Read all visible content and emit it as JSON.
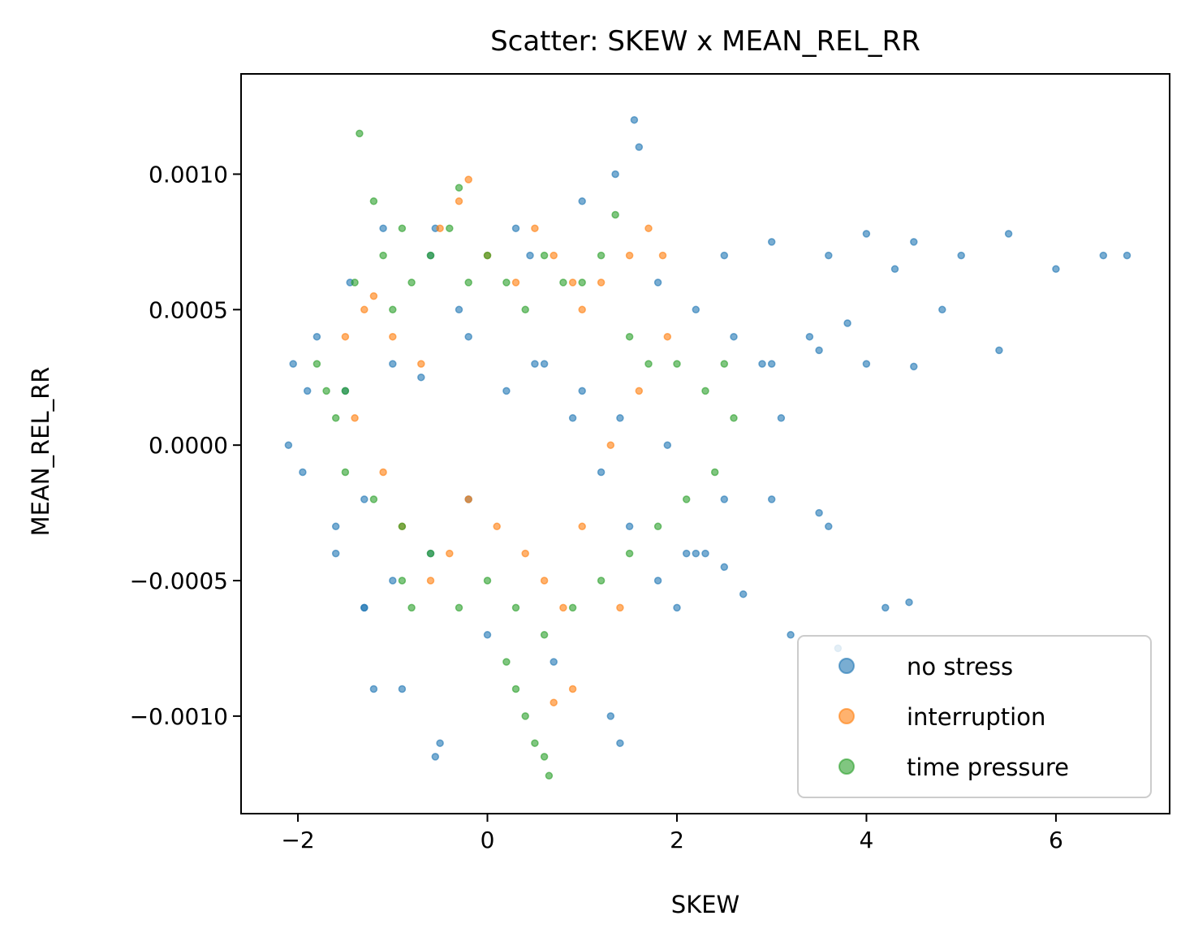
{
  "chart_data": {
    "type": "scatter",
    "title": "Scatter: SKEW x MEAN_REL_RR",
    "xlabel": "SKEW",
    "ylabel": "MEAN_REL_RR",
    "xlim": [
      -2.6,
      7.2
    ],
    "ylim": [
      -0.00136,
      0.00137
    ],
    "x_ticks": [
      -2,
      0,
      2,
      4,
      6
    ],
    "x_tick_labels": [
      "−2",
      "0",
      "2",
      "4",
      "6"
    ],
    "y_ticks": [
      0.001,
      0.0005,
      0.0,
      -0.0005,
      -0.001
    ],
    "y_tick_labels": [
      "0.0010",
      "0.0005",
      "0.0000",
      "−0.0005",
      "−0.0010"
    ],
    "grid": false,
    "legend_position": "lower right",
    "marker_alpha": 0.6,
    "series": [
      {
        "name": "no stress",
        "color": "#1f77b4",
        "x": [
          -2.1,
          -2.05,
          -1.95,
          -1.8,
          -1.6,
          -1.45,
          -1.3,
          -1.1,
          -0.9,
          -0.6,
          -0.5,
          -0.3,
          0.0,
          0.3,
          0.7,
          1.0,
          1.3,
          1.55,
          1.6,
          1.8,
          2.2,
          2.6,
          2.9,
          3.1,
          3.6,
          2.5,
          2.2,
          2.0,
          1.8,
          1.5,
          1.2,
          0.9,
          0.6,
          0.2,
          -0.2,
          -0.6,
          -1.0,
          -1.3,
          -1.6,
          -1.9,
          -0.55,
          -0.55,
          0.45,
          1.35,
          1.4,
          2.5,
          3.0,
          3.6,
          4.0,
          4.5,
          5.0,
          5.5,
          6.0,
          6.5,
          6.75,
          3.4,
          3.8,
          4.3,
          4.8,
          5.4,
          3.0,
          3.5,
          4.0,
          4.5,
          2.3,
          2.7,
          3.2,
          3.7,
          4.2,
          4.45,
          2.1,
          2.5,
          3.0,
          3.5,
          -1.0,
          -0.7,
          -0.2,
          0.5,
          1.0,
          1.4,
          1.9,
          -1.5,
          -1.3,
          -1.2
        ],
        "y": [
          0.0,
          0.0003,
          -0.0001,
          0.0004,
          -0.0003,
          0.0006,
          -0.0006,
          0.0008,
          -0.0009,
          0.0007,
          -0.0011,
          0.0005,
          -0.0007,
          0.0008,
          -0.0008,
          0.0009,
          -0.001,
          0.0012,
          0.0011,
          0.0006,
          0.0005,
          0.0004,
          0.0003,
          0.0001,
          -0.0003,
          -0.0002,
          -0.0004,
          -0.0006,
          -0.0005,
          -0.0003,
          -0.0001,
          0.0001,
          0.0003,
          0.0002,
          -0.0002,
          -0.0004,
          -0.0005,
          -0.0006,
          -0.0004,
          0.0002,
          -0.00115,
          0.0008,
          0.0007,
          0.001,
          -0.0011,
          0.0007,
          0.00075,
          0.0007,
          0.00078,
          0.00075,
          0.0007,
          0.00078,
          0.00065,
          0.0007,
          0.0007,
          0.0004,
          0.00045,
          0.00065,
          0.0005,
          0.00035,
          0.0003,
          0.00035,
          0.0003,
          0.00029,
          -0.0004,
          -0.00055,
          -0.0007,
          -0.00075,
          -0.0006,
          -0.00058,
          -0.0004,
          -0.00045,
          -0.0002,
          -0.00025,
          0.0003,
          0.00025,
          0.0004,
          0.0003,
          0.0002,
          0.0001,
          0.0,
          0.0002,
          -0.0002,
          -0.0009
        ]
      },
      {
        "name": "interruption",
        "color": "#ff7f0e",
        "x": [
          -1.5,
          -1.3,
          -1.2,
          -1.0,
          -0.7,
          -0.5,
          -0.3,
          -0.2,
          0.0,
          0.3,
          0.5,
          0.7,
          0.9,
          1.0,
          1.2,
          1.5,
          1.7,
          1.85,
          1.9,
          1.6,
          1.3,
          1.0,
          0.8,
          0.6,
          0.4,
          0.1,
          -0.2,
          -0.4,
          -0.6,
          -0.9,
          -1.1,
          -1.4,
          0.7,
          0.9,
          1.4
        ],
        "y": [
          0.0004,
          0.0005,
          0.00055,
          0.0004,
          0.0003,
          0.0008,
          0.0009,
          0.00098,
          0.0007,
          0.0006,
          0.0008,
          0.0007,
          0.0006,
          0.0005,
          0.0006,
          0.0007,
          0.0008,
          0.0007,
          0.0004,
          0.0002,
          0.0,
          -0.0003,
          -0.0006,
          -0.0005,
          -0.0004,
          -0.0003,
          -0.0002,
          -0.0004,
          -0.0005,
          -0.0003,
          -0.0001,
          0.0001,
          -0.00095,
          -0.0009,
          -0.0006
        ]
      },
      {
        "name": "time pressure",
        "color": "#2ca02c",
        "x": [
          -1.8,
          -1.7,
          -1.6,
          -1.5,
          -1.4,
          -1.35,
          -1.2,
          -1.1,
          -1.0,
          -0.9,
          -0.8,
          -0.6,
          -0.4,
          -0.3,
          -0.2,
          0.0,
          0.2,
          0.4,
          0.6,
          0.8,
          1.0,
          1.2,
          1.35,
          1.5,
          1.7,
          2.0,
          2.3,
          2.5,
          2.6,
          2.4,
          2.1,
          1.8,
          1.5,
          1.2,
          0.9,
          0.6,
          0.3,
          0.0,
          -0.3,
          -0.6,
          -0.9,
          -1.2,
          -1.5,
          0.2,
          0.3,
          0.4,
          0.5,
          0.6,
          0.65,
          -0.9,
          -0.8
        ],
        "y": [
          0.0003,
          0.0002,
          0.0001,
          0.0002,
          0.0006,
          0.00115,
          0.0009,
          0.0007,
          0.0005,
          0.0008,
          0.0006,
          0.0007,
          0.0008,
          0.00095,
          0.0006,
          0.0007,
          0.0006,
          0.0005,
          0.0007,
          0.0006,
          0.0006,
          0.0007,
          0.00085,
          0.0004,
          0.0003,
          0.0003,
          0.0002,
          0.0003,
          0.0001,
          -0.0001,
          -0.0002,
          -0.0003,
          -0.0004,
          -0.0005,
          -0.0006,
          -0.0007,
          -0.0006,
          -0.0005,
          -0.0006,
          -0.0004,
          -0.0003,
          -0.0002,
          -0.0001,
          -0.0008,
          -0.0009,
          -0.001,
          -0.0011,
          -0.00115,
          -0.00122,
          -0.0005,
          -0.0006
        ]
      }
    ]
  }
}
